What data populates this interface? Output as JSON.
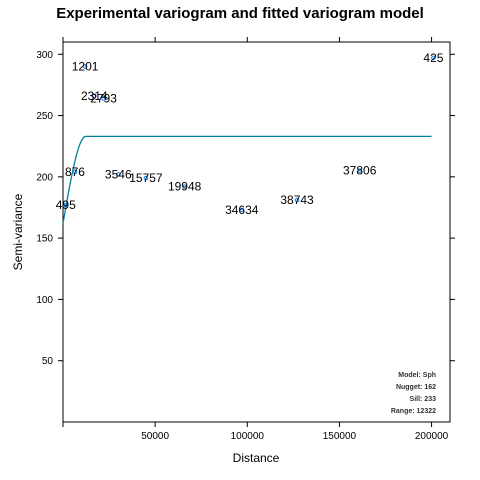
{
  "chart_data": {
    "type": "scatter",
    "title": "Experimental variogram and fitted variogram model",
    "xlabel": "Distance",
    "ylabel": "Semi-variance",
    "xlim": [
      0,
      210000
    ],
    "ylim": [
      0,
      310
    ],
    "xticks": [
      50000,
      100000,
      150000,
      200000
    ],
    "xtick_labels": [
      "50000",
      "100000",
      "150000",
      "200000"
    ],
    "yticks": [
      50,
      100,
      150,
      200,
      250,
      300
    ],
    "ytick_labels": [
      "50",
      "100",
      "150",
      "200",
      "250",
      "300"
    ],
    "points": [
      {
        "x": 1500,
        "y": 177,
        "label": "495"
      },
      {
        "x": 6500,
        "y": 204,
        "label": "876"
      },
      {
        "x": 12000,
        "y": 290,
        "label": "1201"
      },
      {
        "x": 17000,
        "y": 266,
        "label": "2314"
      },
      {
        "x": 22000,
        "y": 264,
        "label": "2793"
      },
      {
        "x": 30000,
        "y": 202,
        "label": "3546"
      },
      {
        "x": 45000,
        "y": 199,
        "label": "15757"
      },
      {
        "x": 66000,
        "y": 192,
        "label": "19948"
      },
      {
        "x": 97000,
        "y": 173,
        "label": "34634"
      },
      {
        "x": 127000,
        "y": 181,
        "label": "38743"
      },
      {
        "x": 161000,
        "y": 205,
        "label": "37806"
      },
      {
        "x": 201000,
        "y": 297,
        "label": "425"
      }
    ],
    "model": {
      "type": "spherical",
      "nugget": 162,
      "sill": 233,
      "range": 12322,
      "x_end": 200000,
      "color": "#0080a0"
    },
    "point_color": "#0080ff",
    "grid": false
  },
  "model_box": {
    "line1": "Model: Sph",
    "line2": "Nugget: 162",
    "line3": "Sill: 233",
    "line4": "Range: 12322"
  }
}
